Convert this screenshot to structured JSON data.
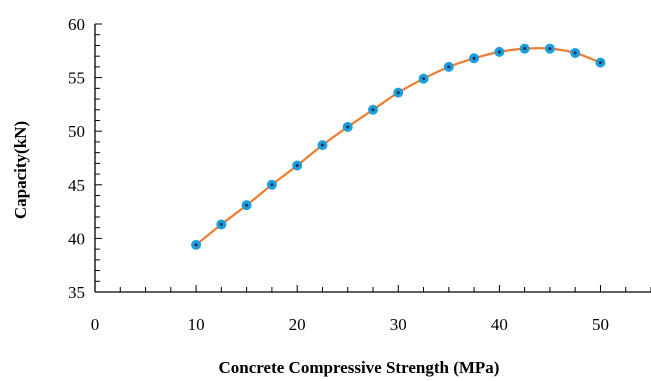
{
  "chart_data": {
    "type": "line",
    "title": "",
    "xlabel": "Concrete Compressive Strength (MPa)",
    "ylabel": "Capacity(kN)",
    "xlim": [
      0,
      55
    ],
    "ylim": [
      35,
      60
    ],
    "x_major_ticks": [
      0,
      10,
      20,
      30,
      40,
      50
    ],
    "x_minor_step": 2.5,
    "y_major_ticks": [
      35,
      40,
      45,
      50,
      55,
      60
    ],
    "y_minor_step": 1,
    "grid": false,
    "legend": "none",
    "line_color": "#ED7D31",
    "marker_color": "#1E9FDC",
    "marker_center_color": "#1F3864",
    "series": [
      {
        "x": [
          10,
          12.5,
          15,
          17.5,
          20,
          22.5,
          25,
          27.5,
          30,
          32.5,
          35,
          37.5,
          40,
          42.5,
          45,
          47.5,
          50
        ],
        "y": [
          39.4,
          41.3,
          43.1,
          45.0,
          46.8,
          48.7,
          50.4,
          52.0,
          53.6,
          54.9,
          56.0,
          56.8,
          57.4,
          57.7,
          57.7,
          57.3,
          56.4
        ]
      }
    ]
  }
}
